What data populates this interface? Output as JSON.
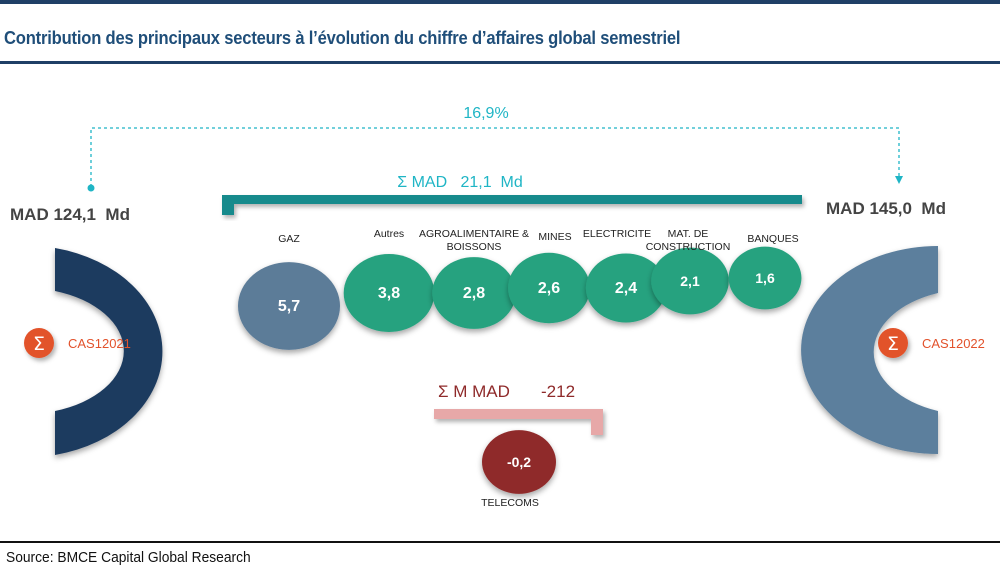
{
  "header": {
    "title": "Contribution des principaux secteurs à l’évolution du chiffre d’affaires global semestriel"
  },
  "footer": {
    "source": "Source: BMCE Capital Global Research"
  },
  "chart_data": {
    "type": "bubble",
    "start": {
      "label": "MAD 124,1  Md",
      "badge": "CAS12021"
    },
    "end": {
      "label": "MAD 145,0  Md",
      "badge": "CAS12022"
    },
    "growth": "16,9%",
    "positive_total": "Σ MAD   21,1  Md",
    "negative_total": {
      "prefix": "Σ M MAD",
      "value": "-212"
    },
    "categories": [
      "GAZ",
      "Autres",
      "AGROALIMENTAIRE & BOISSONS",
      "MINES",
      "ELECTRICITE",
      "MAT. DE CONSTRUCTION",
      "BANQUES",
      "TELECOMS"
    ],
    "values": [
      5.7,
      3.8,
      2.8,
      2.6,
      2.4,
      2.1,
      1.6,
      -0.2
    ],
    "value_labels": [
      "5,7",
      "3,8",
      "2,8",
      "2,6",
      "2,4",
      "2,1",
      "1,6",
      "-0,2"
    ],
    "colors": {
      "gas": "#5b7b98",
      "positive": "#27a27f",
      "negative": "#8f2a2a",
      "start_arc": "#1e3b5f",
      "end_arc": "#5b7f9d",
      "positive_bar": "#188a8c",
      "negative_bar": "#e7a8a8",
      "growth": "#1fb5c5",
      "badge": "#e2522c"
    }
  }
}
